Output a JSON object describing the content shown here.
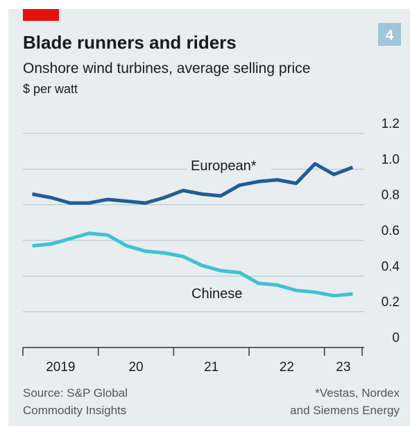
{
  "chart_data": {
    "type": "line",
    "title": "Blade runners and riders",
    "badge": "4",
    "subtitle": "Onshore wind turbines, average selling price",
    "unit": "$ per watt",
    "x": [
      2019.125,
      2019.375,
      2019.625,
      2019.875,
      2020.125,
      2020.375,
      2020.625,
      2020.875,
      2021.125,
      2021.375,
      2021.625,
      2021.875,
      2022.125,
      2022.375,
      2022.625,
      2022.875,
      2023.125,
      2023.375
    ],
    "series": [
      {
        "name": "European*",
        "color": "#1f5c99",
        "values": [
          0.86,
          0.84,
          0.81,
          0.81,
          0.83,
          0.82,
          0.81,
          0.84,
          0.88,
          0.86,
          0.85,
          0.91,
          0.93,
          0.94,
          0.92,
          1.03,
          0.97,
          1.01
        ]
      },
      {
        "name": "Chinese",
        "color": "#3ec1d3",
        "values": [
          0.57,
          0.58,
          0.61,
          0.64,
          0.63,
          0.57,
          0.54,
          0.53,
          0.51,
          0.46,
          0.43,
          0.42,
          0.36,
          0.35,
          0.32,
          0.31,
          0.29,
          0.3
        ]
      }
    ],
    "xlim": [
      2019,
      2023.5
    ],
    "xticks": [
      2019,
      2020,
      2021,
      2022,
      2023,
      2023.5
    ],
    "xtick_labels": [
      {
        "value": 2019.5,
        "label": "2019"
      },
      {
        "value": 2020.5,
        "label": "20"
      },
      {
        "value": 2021.5,
        "label": "21"
      },
      {
        "value": 2022.5,
        "label": "22"
      },
      {
        "value": 2023.25,
        "label": "23"
      }
    ],
    "ylim": [
      0,
      1.2
    ],
    "yticks": [
      0,
      0.2,
      0.4,
      0.6,
      0.8,
      {
        "value": 1,
        "label": "1.0"
      },
      1.2
    ],
    "grid": true,
    "source": [
      "Source: S&P Global",
      "Commodity Insights"
    ],
    "footnote": [
      "*Vestas, Nordex",
      "and Siemens Energy"
    ]
  }
}
